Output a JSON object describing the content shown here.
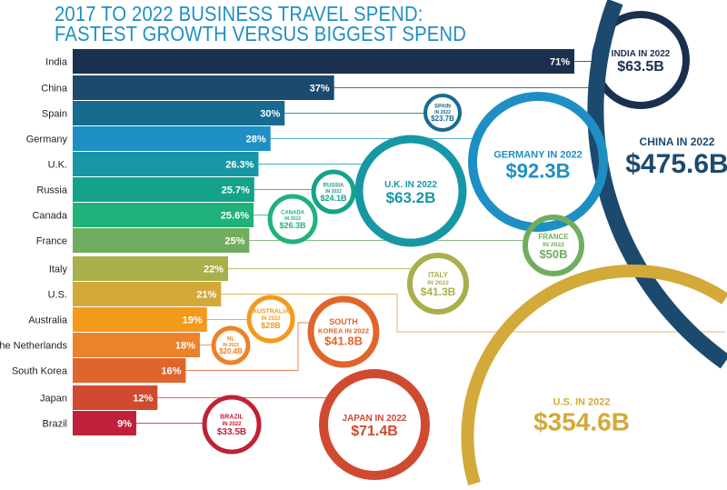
{
  "chart_data": {
    "type": "bar",
    "title_line1": "2017 TO 2022 BUSINESS TRAVEL SPEND:",
    "title_line2": "FASTEST GROWTH VERSUS BIGGEST SPEND",
    "xlabel": "",
    "ylabel": "",
    "categories": [
      "India",
      "China",
      "Spain",
      "Germany",
      "U.K.",
      "Russia",
      "Canada",
      "France",
      "Italy",
      "U.S.",
      "Australia",
      "The Netherlands",
      "South Korea",
      "Japan",
      "Brazil"
    ],
    "growth_labels": [
      "71%",
      "37%",
      "30%",
      "28%",
      "26.3%",
      "25.7%",
      "25.6%",
      "25%",
      "22%",
      "21%",
      "19%",
      "18%",
      "16%",
      "12%",
      "9%"
    ],
    "growth_pct": [
      71,
      37,
      30,
      28,
      26.3,
      25.7,
      25.6,
      25,
      22,
      21,
      19,
      18,
      16,
      12,
      9
    ],
    "spend_2022_billion": [
      63.5,
      475.6,
      23.7,
      92.3,
      63.2,
      24.1,
      26.3,
      50,
      41.3,
      354.6,
      28,
      20.4,
      41.8,
      71.4,
      33.5
    ],
    "circle_labels": [
      {
        "l1": "INDIA IN 2022",
        "l2": "",
        "v": "$63.5B"
      },
      {
        "l1": "CHINA IN 2022",
        "l2": "",
        "v": "$475.6B"
      },
      {
        "l1": "SPAIN",
        "l2": "IN 2022",
        "v": "$23.7B"
      },
      {
        "l1": "GERMANY IN 2022",
        "l2": "",
        "v": "$92.3B"
      },
      {
        "l1": "U.K. IN 2022",
        "l2": "",
        "v": "$63.2B"
      },
      {
        "l1": "RUSSIA",
        "l2": "IN 2022",
        "v": "$24.1B"
      },
      {
        "l1": "CANADA",
        "l2": "IN 2022",
        "v": "$26.3B"
      },
      {
        "l1": "FRANCE",
        "l2": "IN 2022",
        "v": "$50B"
      },
      {
        "l1": "ITALY",
        "l2": "IN 2022",
        "v": "$41.3B"
      },
      {
        "l1": "U.S. IN 2022",
        "l2": "",
        "v": "$354.6B"
      },
      {
        "l1": "AUSTRALIA",
        "l2": "IN 2022",
        "v": "$28B"
      },
      {
        "l1": "NL",
        "l2": "IN 2022",
        "v": "$20.4B"
      },
      {
        "l1": "SOUTH",
        "l2": "KOREA IN 2022",
        "v": "$41.8B"
      },
      {
        "l1": "JAPAN IN 2022",
        "l2": "",
        "v": "$71.4B"
      },
      {
        "l1": "BRAZIL",
        "l2": "IN 2022",
        "v": "$33.5B"
      }
    ],
    "colors": [
      "#1b2f4f",
      "#1c4a6e",
      "#176b8f",
      "#1e8fc4",
      "#1797a6",
      "#14a38a",
      "#20b27a",
      "#70ad5e",
      "#a9b04b",
      "#d3a93a",
      "#f39a1c",
      "#ec8229",
      "#e0652d",
      "#d04a30",
      "#c1203a"
    ],
    "xlim": [
      0,
      71
    ]
  }
}
